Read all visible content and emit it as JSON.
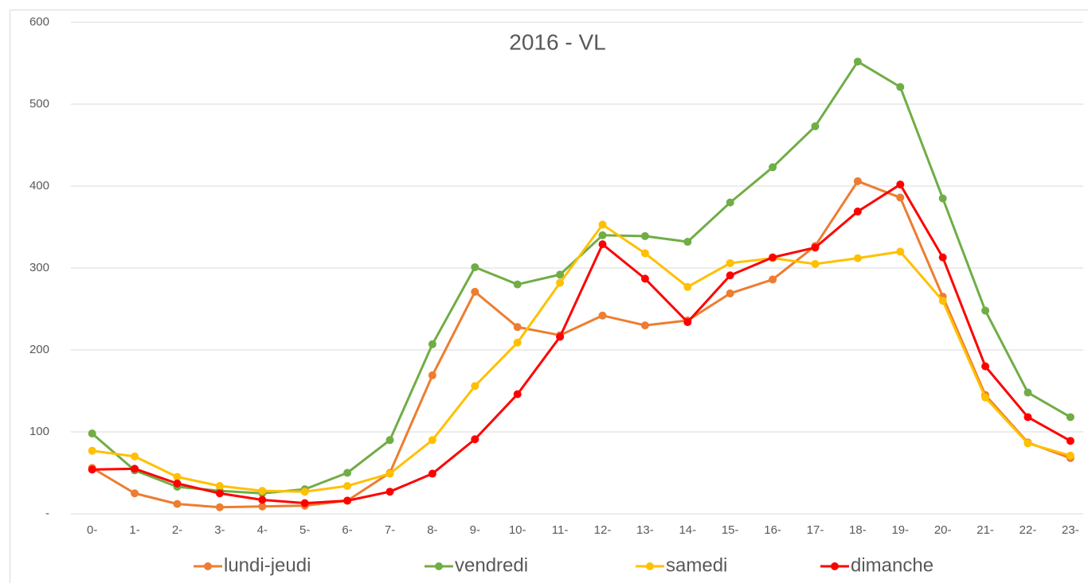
{
  "chart_data": {
    "type": "line",
    "title": "2016 - VL",
    "categories": [
      "0-",
      "1-",
      "2-",
      "3-",
      "4-",
      "5-",
      "6-",
      "7-",
      "8-",
      "9-",
      "10-",
      "11-",
      "12-",
      "13-",
      "14-",
      "15-",
      "16-",
      "17-",
      "18-",
      "19-",
      "20-",
      "21-",
      "22-",
      "23-"
    ],
    "series": [
      {
        "name": "lundi-jeudi",
        "color": "#ED7D31",
        "values": [
          56,
          25,
          12,
          8,
          9,
          10,
          16,
          50,
          169,
          271,
          228,
          218,
          242,
          230,
          236,
          269,
          286,
          327,
          406,
          386,
          265,
          145,
          87,
          68
        ]
      },
      {
        "name": "vendredi",
        "color": "#70AD47",
        "values": [
          98,
          53,
          33,
          28,
          25,
          30,
          50,
          90,
          207,
          301,
          280,
          292,
          340,
          339,
          332,
          380,
          423,
          473,
          552,
          521,
          385,
          248,
          148,
          118
        ]
      },
      {
        "name": "samedi",
        "color": "#FFC000",
        "values": [
          77,
          70,
          45,
          34,
          28,
          27,
          34,
          49,
          90,
          156,
          209,
          282,
          353,
          318,
          277,
          306,
          312,
          305,
          312,
          320,
          260,
          142,
          86,
          71
        ]
      },
      {
        "name": "dimanche",
        "color": "#FF0000",
        "values": [
          54,
          55,
          37,
          25,
          17,
          13,
          16,
          27,
          49,
          91,
          146,
          216,
          329,
          287,
          234,
          291,
          313,
          325,
          369,
          402,
          313,
          180,
          118,
          89
        ]
      }
    ],
    "ylim": [
      0,
      600
    ],
    "yticks": [
      {
        "value": 0,
        "label": "-"
      },
      100,
      200,
      300,
      400,
      500,
      600
    ],
    "grid": true,
    "legend": "bottom"
  }
}
